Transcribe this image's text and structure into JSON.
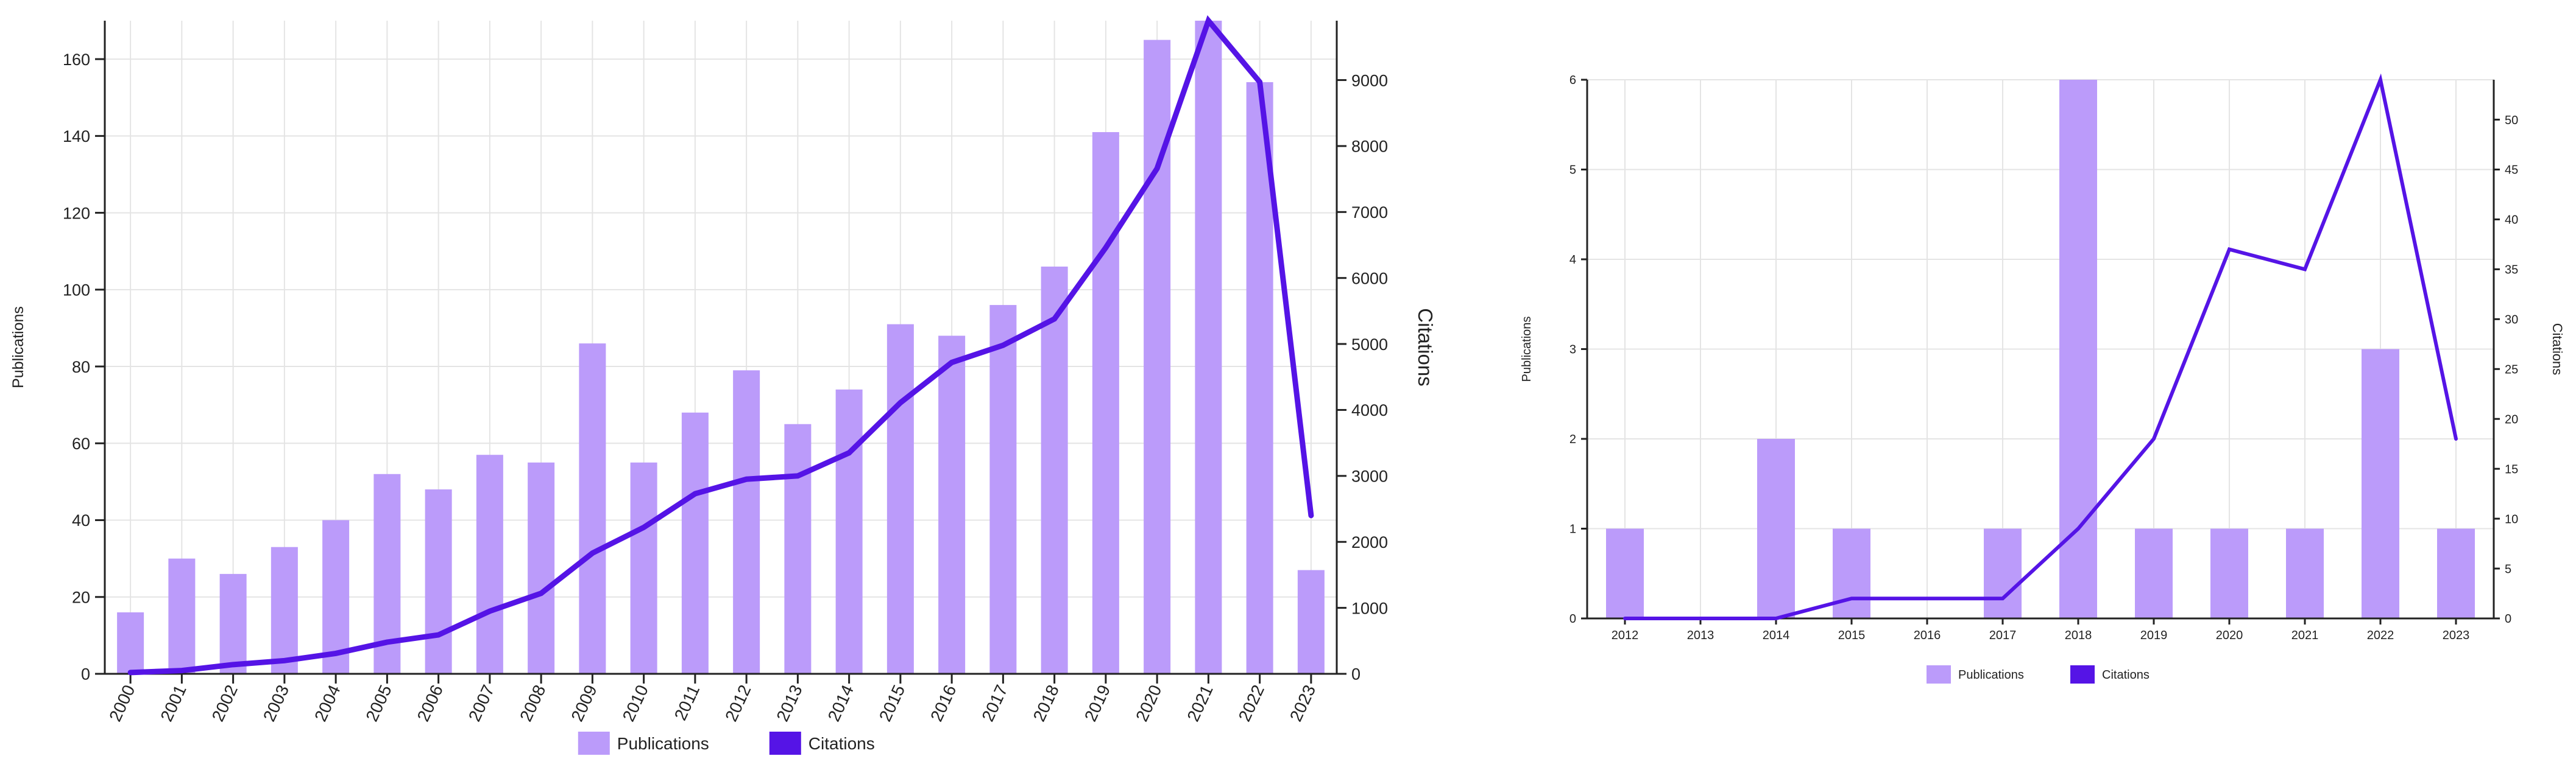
{
  "colors": {
    "publications": "#bb9bfa",
    "citations": "#5514e6",
    "grid": "#e4e4e4",
    "axis": "#222222"
  },
  "chart_data": [
    {
      "type": "bar",
      "title": "",
      "ylabel": "Publications",
      "y2label": "Citations",
      "ylim": [
        0,
        170
      ],
      "y2lim": [
        0,
        9900
      ],
      "yticks": [
        0,
        20,
        40,
        60,
        80,
        100,
        120,
        140,
        160
      ],
      "y2ticks": [
        0,
        1000,
        2000,
        3000,
        4000,
        5000,
        6000,
        7000,
        8000,
        9000
      ],
      "grid": true,
      "legend": "bottom-center",
      "categories": [
        "2000",
        "2001",
        "2002",
        "2003",
        "2004",
        "2005",
        "2006",
        "2007",
        "2008",
        "2009",
        "2010",
        "2011",
        "2012",
        "2013",
        "2014",
        "2015",
        "2016",
        "2017",
        "2018",
        "2019",
        "2020",
        "2021",
        "2022",
        "2023"
      ],
      "series": [
        {
          "name": "Publications",
          "type": "bar",
          "axis": "left",
          "values": [
            16,
            30,
            26,
            33,
            40,
            52,
            48,
            57,
            55,
            86,
            55,
            68,
            79,
            65,
            74,
            91,
            88,
            96,
            106,
            141,
            165,
            170,
            154,
            27
          ]
        },
        {
          "name": "Citations",
          "type": "line",
          "axis": "right",
          "values": [
            20,
            50,
            140,
            200,
            310,
            480,
            590,
            950,
            1220,
            1830,
            2220,
            2730,
            2950,
            3000,
            3350,
            4110,
            4720,
            4980,
            5380,
            6460,
            7660,
            9900,
            8970,
            2400
          ]
        }
      ]
    },
    {
      "type": "bar",
      "title": "",
      "ylabel": "Publications",
      "y2label": "Citations",
      "ylim": [
        0,
        6
      ],
      "y2lim": [
        0,
        54
      ],
      "yticks": [
        0,
        1,
        2,
        3,
        4,
        5,
        6
      ],
      "y2ticks": [
        0,
        5,
        10,
        15,
        20,
        25,
        30,
        35,
        40,
        45,
        50
      ],
      "grid": true,
      "legend": "bottom-center",
      "categories": [
        "2012",
        "2013",
        "2014",
        "2015",
        "2016",
        "2017",
        "2018",
        "2019",
        "2020",
        "2021",
        "2022",
        "2023"
      ],
      "series": [
        {
          "name": "Publications",
          "type": "bar",
          "axis": "left",
          "values": [
            1,
            0,
            2,
            1,
            0,
            1,
            6,
            1,
            1,
            1,
            3,
            1
          ]
        },
        {
          "name": "Citations",
          "type": "line",
          "axis": "right",
          "values": [
            0,
            0,
            0,
            2,
            2,
            2,
            9,
            18,
            37,
            35,
            54,
            18
          ]
        }
      ]
    }
  ]
}
